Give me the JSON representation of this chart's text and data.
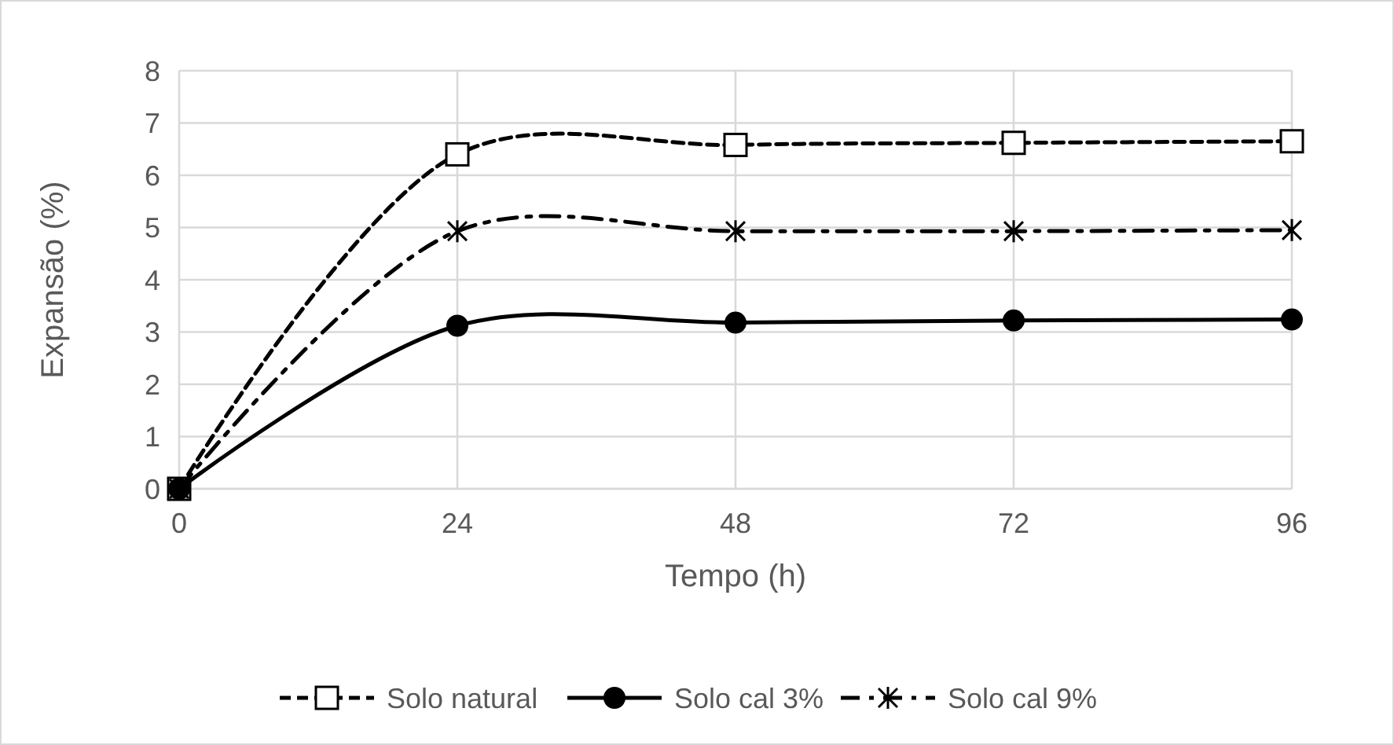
{
  "chart_data": {
    "type": "line",
    "xlabel": "Tempo (h)",
    "ylabel": "Expansão (%)",
    "x": [
      0,
      24,
      48,
      72,
      96
    ],
    "xlim": [
      0,
      96
    ],
    "xticks": [
      0,
      24,
      48,
      72,
      96
    ],
    "ylim": [
      0,
      8
    ],
    "yticks": [
      0,
      1,
      2,
      3,
      4,
      5,
      6,
      7,
      8
    ],
    "grid": true,
    "legend": "bottom",
    "series": [
      {
        "name": "Solo natural",
        "color": "#000000",
        "marker": "square",
        "line_style": "dashed",
        "values": [
          0,
          6.4,
          6.58,
          6.62,
          6.65
        ]
      },
      {
        "name": "Solo cal 3%",
        "color": "#000000",
        "marker": "circle",
        "line_style": "solid",
        "values": [
          0,
          3.12,
          3.18,
          3.22,
          3.24
        ]
      },
      {
        "name": "Solo cal 9%",
        "color": "#000000",
        "marker": "cross",
        "line_style": "dashdot",
        "values": [
          0,
          4.93,
          4.93,
          4.93,
          4.95
        ]
      }
    ]
  }
}
